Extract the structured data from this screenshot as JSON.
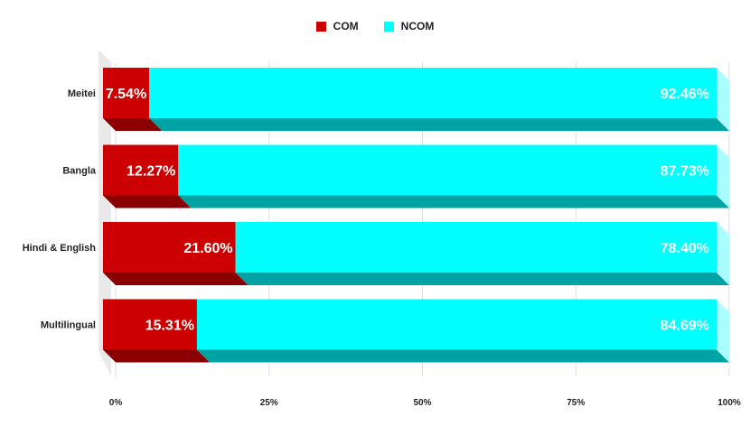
{
  "chart_data": {
    "type": "bar",
    "orientation": "horizontal",
    "stacked": "percent",
    "style": "3d",
    "categories": [
      "Meitei",
      "Bangla",
      "Hindi & English",
      "Multilingual"
    ],
    "series": [
      {
        "name": "COM",
        "values": [
          7.54,
          12.27,
          21.6,
          15.31
        ],
        "color": "#cc0000",
        "side_color": "#8a0000",
        "labels": [
          "7.54%",
          "12.27%",
          "21.60%",
          "15.31%"
        ]
      },
      {
        "name": "NCOM",
        "values": [
          92.46,
          87.73,
          78.4,
          84.69
        ],
        "color": "#00ffff",
        "side_color": "#00a3a3",
        "labels": [
          "92.46%",
          "87.73%",
          "78.40%",
          "84.69%"
        ]
      }
    ],
    "xlim": [
      0,
      100
    ],
    "xticks": [
      "0%",
      "25%",
      "50%",
      "75%",
      "100%"
    ],
    "legend_position": "top-center",
    "grid": true
  }
}
